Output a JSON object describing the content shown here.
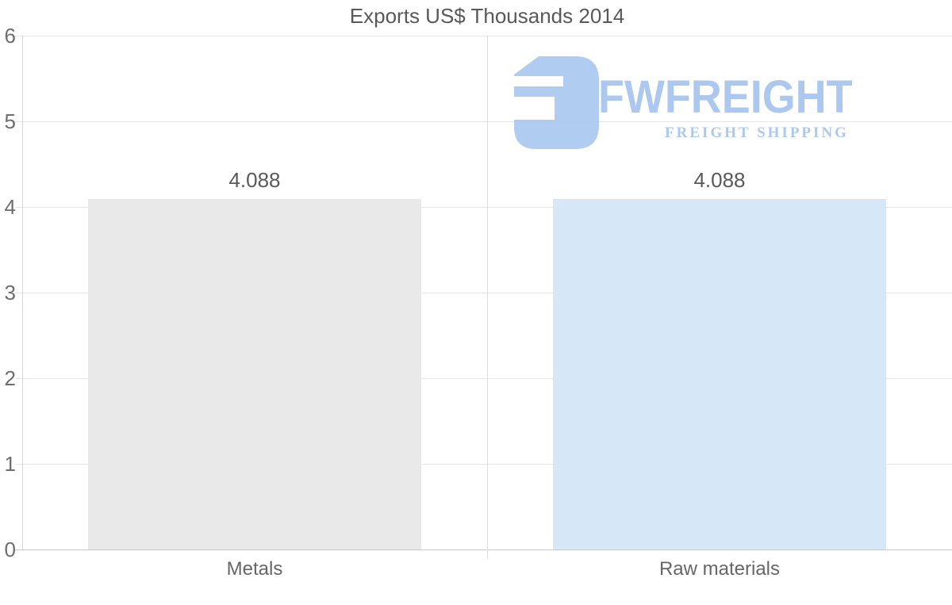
{
  "chart_data": {
    "type": "bar",
    "title": "Exports US$ Thousands 2014",
    "categories": [
      "Metals",
      "Raw materials"
    ],
    "values": [
      4.088,
      4.088
    ],
    "value_labels": [
      "4.088",
      "4.088"
    ],
    "bar_colors": [
      "#e9e9e9",
      "#d6e7f8"
    ],
    "ylim": [
      0,
      6
    ],
    "yticks": [
      0,
      1,
      2,
      3,
      4,
      5,
      6
    ],
    "grid": true,
    "legend_position": "none",
    "xlabel": "",
    "ylabel": ""
  },
  "watermark": {
    "brand": "FWFREIGHT",
    "tagline": "FREIGHT SHIPPING",
    "color": "#a6c4ee",
    "icon_color": "#abc8f0",
    "icon": "fwfreight-f-mark"
  },
  "colors": {
    "background": "#ffffff",
    "gridline": "#e4e4e4",
    "baseline": "#c8c8c8",
    "axis_line": "#d6d6d6",
    "divider_line": "#dedede",
    "title_text": "#595959",
    "tick_text": "#6e6e6e",
    "category_text": "#666666",
    "value_text": "#595959"
  }
}
